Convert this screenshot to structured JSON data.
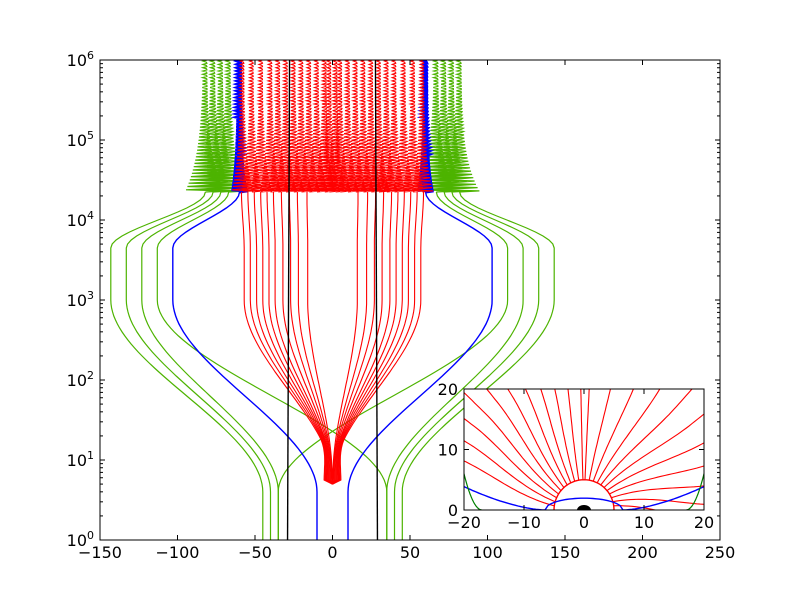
{
  "colors": {
    "background": "#ffffff",
    "axes": "#000000",
    "red_lines": "#ff0000",
    "blue_line": "#0000ff",
    "green_lines": "#4db300",
    "inset_green": "#008000",
    "black_lines": "#000000"
  },
  "chart_data": [
    {
      "type": "line",
      "title": "",
      "xlabel": "",
      "ylabel": "",
      "xscale": "linear",
      "yscale": "log",
      "xlim": [
        -150,
        250
      ],
      "ylim": [
        1,
        1000000
      ],
      "grid": false,
      "legend": "none",
      "x_ticks": [
        -150,
        -100,
        -50,
        0,
        50,
        100,
        150,
        200,
        250
      ],
      "x_tick_labels": [
        "−150",
        "−100",
        "−50",
        "0",
        "50",
        "100",
        "150",
        "200",
        "250"
      ],
      "y_ticks": [
        1,
        10,
        100,
        1000,
        10000,
        100000,
        1000000
      ],
      "y_tick_labels": [
        {
          "base": "10",
          "exp": "0"
        },
        {
          "base": "10",
          "exp": "1"
        },
        {
          "base": "10",
          "exp": "2"
        },
        {
          "base": "10",
          "exp": "3"
        },
        {
          "base": "10",
          "exp": "4"
        },
        {
          "base": "10",
          "exp": "5"
        },
        {
          "base": "10",
          "exp": "6"
        }
      ],
      "series": [
        {
          "color_key": "red_lines",
          "field_lines": {
            "start_x": [
              -27,
              -24,
              -21,
              -18,
              -15,
              -12,
              -9,
              -6,
              -3,
              -1,
              1,
              3,
              6,
              9,
              12,
              15,
              18,
              21,
              24,
              27
            ],
            "apex_y": 5,
            "max_x": [
              -57,
              -53,
              -49,
              -45,
              -41,
              -37,
              -32,
              -27,
              -22,
              -16,
              16,
              22,
              27,
              32,
              37,
              41,
              45,
              49,
              53,
              57
            ],
            "top_x": [
              -58,
              -52,
              -46,
              -40,
              -35,
              -30,
              -25,
              -20,
              -15,
              -10,
              -5,
              -2,
              2,
              5,
              10,
              15,
              20,
              25,
              30,
              35,
              40,
              46,
              52,
              58
            ]
          }
        },
        {
          "color_key": "blue_line",
          "field_lines": {
            "bottom_x": [
              -10,
              10
            ],
            "max_x": [
              -103,
              103
            ],
            "top_x": [
              -60,
              60
            ]
          }
        },
        {
          "color_key": "green_lines",
          "field_lines": {
            "bottom_x": [
              -45,
              -40,
              -35,
              35,
              40,
              45
            ],
            "max_x": [
              -143,
              -133,
              -123,
              -113,
              113,
              123,
              133,
              143
            ],
            "top_x": [
              -82,
              -77,
              -72,
              -67,
              67,
              72,
              77,
              82
            ]
          }
        },
        {
          "color_key": "black_lines",
          "vertical_x": [
            -29,
            29
          ]
        }
      ]
    },
    {
      "type": "line",
      "title": "",
      "xlabel": "",
      "ylabel": "",
      "placement": "lower-right inset",
      "xlim": [
        -20,
        20
      ],
      "ylim": [
        0,
        20
      ],
      "grid": false,
      "x_ticks": [
        -20,
        -10,
        0,
        10,
        20
      ],
      "x_tick_labels": [
        "−20",
        "−10",
        "0",
        "10",
        "20"
      ],
      "y_ticks": [
        0,
        10,
        20
      ],
      "y_tick_labels": [
        "0",
        "10",
        "20"
      ],
      "body_radius": 5,
      "series": [
        {
          "color_key": "red_lines",
          "angles_deg": [
            8,
            16,
            24,
            32,
            40,
            48,
            56,
            64,
            72,
            80,
            88,
            92,
            100,
            108,
            116,
            124,
            132,
            140,
            148,
            156,
            164,
            172
          ],
          "radius": 5
        },
        {
          "color_key": "blue_line",
          "arc": {
            "from_x": -20,
            "to_x": 20,
            "near_origin_radius": 6.5
          }
        },
        {
          "color_key": "inset_green",
          "edge_curves_x": [
            -17,
            17
          ]
        }
      ]
    }
  ]
}
